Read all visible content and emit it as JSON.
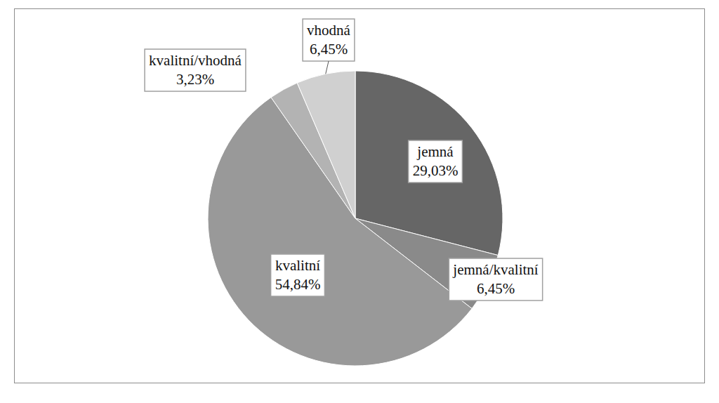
{
  "chart_data": {
    "type": "pie",
    "categories": [
      "jemná",
      "jemná/kvalitní",
      "kvalitní",
      "kvalitní/vhodná",
      "vhodná"
    ],
    "values": [
      29.03,
      6.45,
      54.84,
      3.23,
      6.45
    ],
    "value_labels": [
      "29,03%",
      "6,45%",
      "54,84%",
      "3,23%",
      "6,45%"
    ],
    "colors": [
      "#666666",
      "#8a8a8a",
      "#999999",
      "#b3b3b3",
      "#d0d0d0"
    ],
    "data_labels": true
  }
}
